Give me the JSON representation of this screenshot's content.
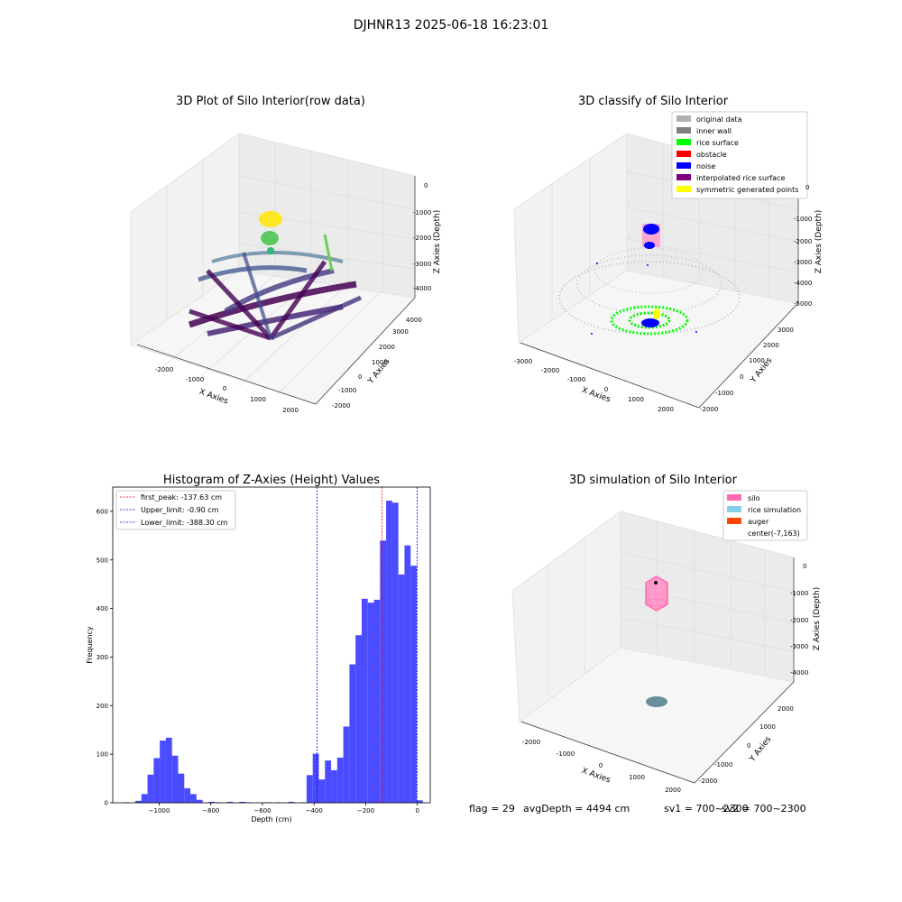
{
  "suptitle": "DJHNR13 2025-06-18 16:23:01",
  "footer": {
    "flag": "flag = 29",
    "avg": "avgDepth = 4494 cm",
    "sv1": "sv1 = 700~2300",
    "sv2": "sv2 = 700~2300"
  },
  "chart_data": [
    {
      "type": "scatter",
      "title": "3D Plot of Silo Interior(row data)",
      "xlabel": "X Axies",
      "ylabel": "Y Axies",
      "zlabel": "Z Axies (Depth)",
      "xticks": [
        "-2000",
        "-1000",
        "0",
        "1000",
        "2000"
      ],
      "yticks": [
        "-2000",
        "-1000",
        "0",
        "1000",
        "2000",
        "3000",
        "4000"
      ],
      "zticks": [
        "0",
        "-1000",
        "-2000",
        "-3000",
        "-4000"
      ],
      "colormap": "viridis",
      "colors": {
        "low": "#440154",
        "mid": "#3b528b",
        "high": "#fde725"
      }
    },
    {
      "type": "scatter",
      "title": "3D classify of Silo Interior",
      "xlabel": "X Axies",
      "ylabel": "Y Axies",
      "zlabel": "Z Axies (Depth)",
      "xticks": [
        "-3000",
        "-2000",
        "-1000",
        "0",
        "1000",
        "2000"
      ],
      "yticks": [
        "-2000",
        "-1000",
        "0",
        "1000",
        "2000",
        "3000"
      ],
      "zticks": [
        "0",
        "-1000",
        "-2000",
        "-3000",
        "-4000",
        "-5000"
      ],
      "legend_position": "top-right",
      "legend": [
        {
          "label": "original data",
          "color": "#b0b0b0"
        },
        {
          "label": "inner wall",
          "color": "#808080"
        },
        {
          "label": "rice surface",
          "color": "#00ff00"
        },
        {
          "label": "obstacle",
          "color": "#ff0000"
        },
        {
          "label": "noise",
          "color": "#0000ff"
        },
        {
          "label": "interpolated rice surface",
          "color": "#800080"
        },
        {
          "label": "symmetric generated points",
          "color": "#ffff00"
        }
      ]
    },
    {
      "type": "bar",
      "title": "Histogram of Z-Axies (Height) Values",
      "xlabel": "Depth (cm)",
      "ylabel": "Frequency",
      "xlim": [
        -1180,
        50
      ],
      "ylim": [
        0,
        650
      ],
      "bar_color": "#4b4bff",
      "bin_width": 23.7,
      "bin_starts": [
        -1140,
        -1116.3,
        -1092.6,
        -1068.9,
        -1045.2,
        -1021.5,
        -997.8,
        -974.1,
        -950.4,
        -926.7,
        -903,
        -879.3,
        -855.6,
        -831.9,
        -808.2,
        -784.5,
        -760.8,
        -737.1,
        -713.4,
        -689.7,
        -666,
        -642.3,
        -618.6,
        -594.9,
        -571.2,
        -547.5,
        -523.8,
        -500.1,
        -476.4,
        -452.7,
        -429,
        -405.3,
        -381.6,
        -357.9,
        -334.2,
        -310.5,
        -286.8,
        -263.1,
        -239.4,
        -215.7,
        -192,
        -168.3,
        -144.6,
        -120.9,
        -97.2,
        -73.5,
        -49.8,
        -26.1,
        -2.4
      ],
      "values": [
        1,
        0,
        4,
        18,
        58,
        92,
        128,
        134,
        97,
        60,
        30,
        18,
        6,
        0,
        2,
        1,
        0,
        2,
        0,
        2,
        1,
        0,
        0,
        1,
        0,
        1,
        0,
        2,
        0,
        1,
        57,
        101,
        48,
        87,
        67,
        93,
        157,
        285,
        345,
        420,
        412,
        418,
        540,
        622,
        618,
        470,
        530,
        488,
        5
      ],
      "xticks": [
        -1000,
        -800,
        -600,
        -400,
        -200,
        0
      ],
      "xtick_labels": [
        "−1000",
        "−800",
        "−600",
        "−400",
        "−200",
        "0"
      ],
      "yticks": [
        0,
        100,
        200,
        300,
        400,
        500,
        600
      ],
      "vlines": [
        {
          "x": -137.63,
          "color": "#ff0000",
          "label": "first_peak: -137.63 cm"
        },
        {
          "x": -0.9,
          "color": "#0000ff",
          "label": "Upper_limit: -0.90 cm"
        },
        {
          "x": -388.3,
          "color": "#0000ff",
          "label": "Lower_limit: -388.30 cm"
        }
      ],
      "legend_position": "top-left"
    },
    {
      "type": "scatter",
      "title": "3D simulation of Silo Interior",
      "xlabel": "X Axies",
      "ylabel": "Y Axies",
      "zlabel": "Z Axies (Depth)",
      "xticks": [
        "-2000",
        "-1000",
        "0",
        "1000",
        "2000"
      ],
      "yticks": [
        "-2000",
        "-1000",
        "0",
        "1000",
        "2000"
      ],
      "zticks": [
        "0",
        "-1000",
        "-2000",
        "-3000",
        "-4000"
      ],
      "legend_position": "top-right",
      "legend": [
        {
          "label": "silo",
          "color": "#ff69b4"
        },
        {
          "label": "rice simulation",
          "color": "#87ceeb"
        },
        {
          "label": "auger",
          "color": "#ff4500"
        },
        {
          "label": "center(-7,163)",
          "color": ""
        }
      ]
    }
  ]
}
